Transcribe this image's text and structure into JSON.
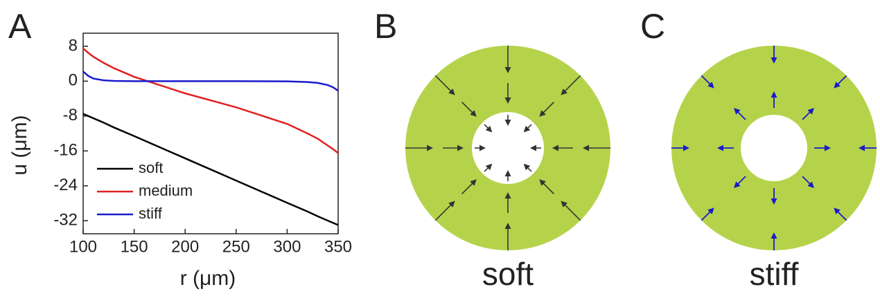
{
  "chart_data": {
    "type": "line",
    "x_label": "r (μm)",
    "y_label": "u (μm)",
    "x": [
      100,
      105,
      110,
      120,
      130,
      150,
      200,
      250,
      300,
      320,
      330,
      340,
      345,
      350
    ],
    "series": [
      {
        "name": "soft",
        "color": "#000000",
        "values": [
          -7.5,
          -8.0,
          -8.5,
          -9.5,
          -10.6,
          -12.6,
          -17.7,
          -22.8,
          -27.9,
          -29.9,
          -31.0,
          -32.0,
          -32.5,
          -33.0
        ]
      },
      {
        "name": "medium",
        "color": "#e02020",
        "values": [
          7.5,
          6.5,
          5.6,
          4.2,
          3.0,
          1.0,
          -2.8,
          -6.0,
          -9.8,
          -12.0,
          -13.2,
          -14.8,
          -15.6,
          -16.5
        ]
      },
      {
        "name": "stiff",
        "color": "#1a1acc",
        "values": [
          2.2,
          1.2,
          0.6,
          0.2,
          0.05,
          0,
          0,
          0,
          -0.05,
          -0.2,
          -0.4,
          -0.9,
          -1.4,
          -2.2
        ]
      }
    ],
    "xlim": [
      100,
      350
    ],
    "xticks": [
      100,
      150,
      200,
      250,
      300,
      350
    ],
    "ylim": [
      -35,
      11
    ],
    "yticks": [
      8,
      0,
      -8,
      -16,
      -24,
      -32
    ],
    "legend": "lower-left"
  },
  "panel_labels": [
    "A",
    "B",
    "C"
  ],
  "diagrams": [
    {
      "caption": "soft"
    },
    {
      "caption": "stiff"
    }
  ]
}
